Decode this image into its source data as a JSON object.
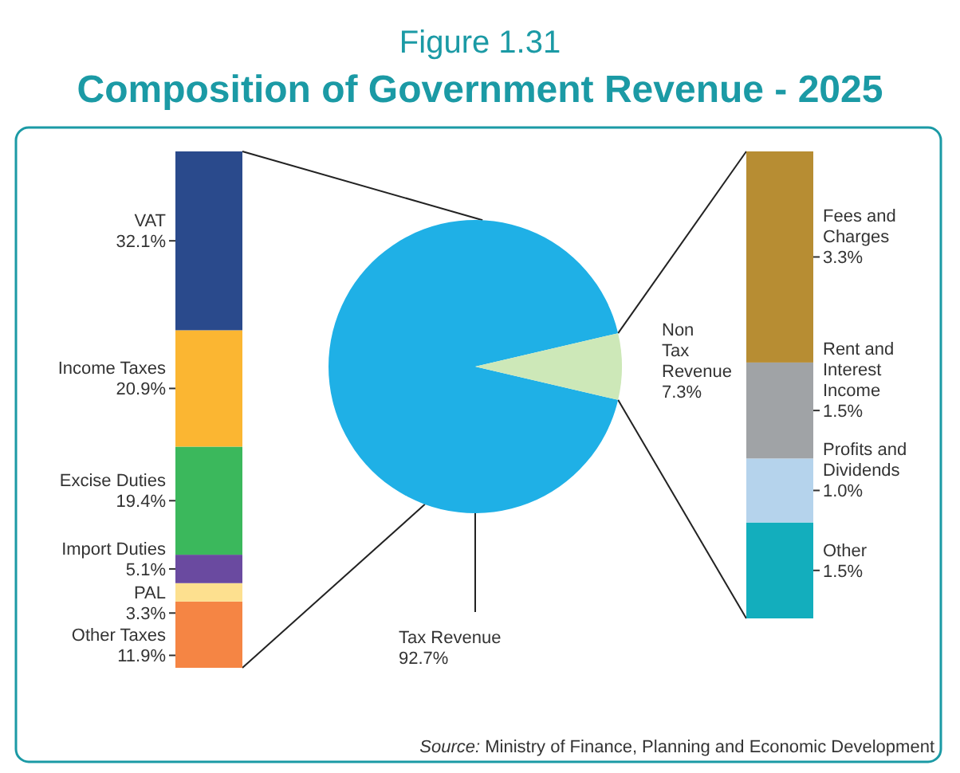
{
  "chart_data": [
    {
      "type": "bar",
      "stacked": true,
      "categories": [
        null
      ],
      "series": [
        {
          "name": "Other Taxes",
          "color": "#f58544",
          "values": [
            11.9
          ],
          "value_labels": [
            "11.9%"
          ]
        },
        {
          "name": "PAL",
          "color": "#fde08f",
          "values": [
            3.3
          ],
          "value_labels": [
            "3.3%"
          ]
        },
        {
          "name": "Import Duties",
          "color": "#6a4aa0",
          "values": [
            5.1
          ],
          "value_labels": [
            "5.1%"
          ]
        },
        {
          "name": "Excise Duties",
          "color": "#3bb85c",
          "values": [
            19.4
          ],
          "value_labels": [
            "19.4%"
          ]
        },
        {
          "name": "Income Taxes",
          "color": "#fbb632",
          "values": [
            20.9
          ],
          "value_labels": [
            "20.9%"
          ]
        },
        {
          "name": "VAT",
          "color": "#2a4a8c",
          "values": [
            32.1
          ],
          "value_labels": [
            "32.1%"
          ]
        }
      ]
    },
    {
      "type": "pie",
      "title": "Figure 1.31",
      "subtitle": "Composition of Government Revenue - 2025",
      "categories": [
        "Tax Revenue",
        "Non Tax Revenue"
      ],
      "values": [
        92.7,
        7.3
      ],
      "colors": [
        "#1fb0e6",
        "#cde8b8"
      ],
      "value_labels": [
        "92.7%",
        "7.3%"
      ],
      "annotations": [
        "Source: Ministry of Finance, Planning and Economic Development"
      ]
    },
    {
      "type": "bar",
      "stacked": true,
      "categories": [
        null
      ],
      "series": [
        {
          "name": "Other",
          "color": "#13aebd",
          "values": [
            1.5
          ],
          "value_labels": [
            "1.5%"
          ]
        },
        {
          "name": "Profits and Dividends",
          "color": "#b5d3ec",
          "values": [
            1.0
          ],
          "value_labels": [
            "1.0%"
          ]
        },
        {
          "name": "Rent and Interest Income",
          "color": "#a0a3a6",
          "values": [
            1.5
          ],
          "value_labels": [
            "1.5%"
          ]
        },
        {
          "name": "Fees and Charges",
          "color": "#b78d33",
          "values": [
            3.3
          ],
          "value_labels": [
            "3.3%"
          ]
        }
      ]
    }
  ]
}
